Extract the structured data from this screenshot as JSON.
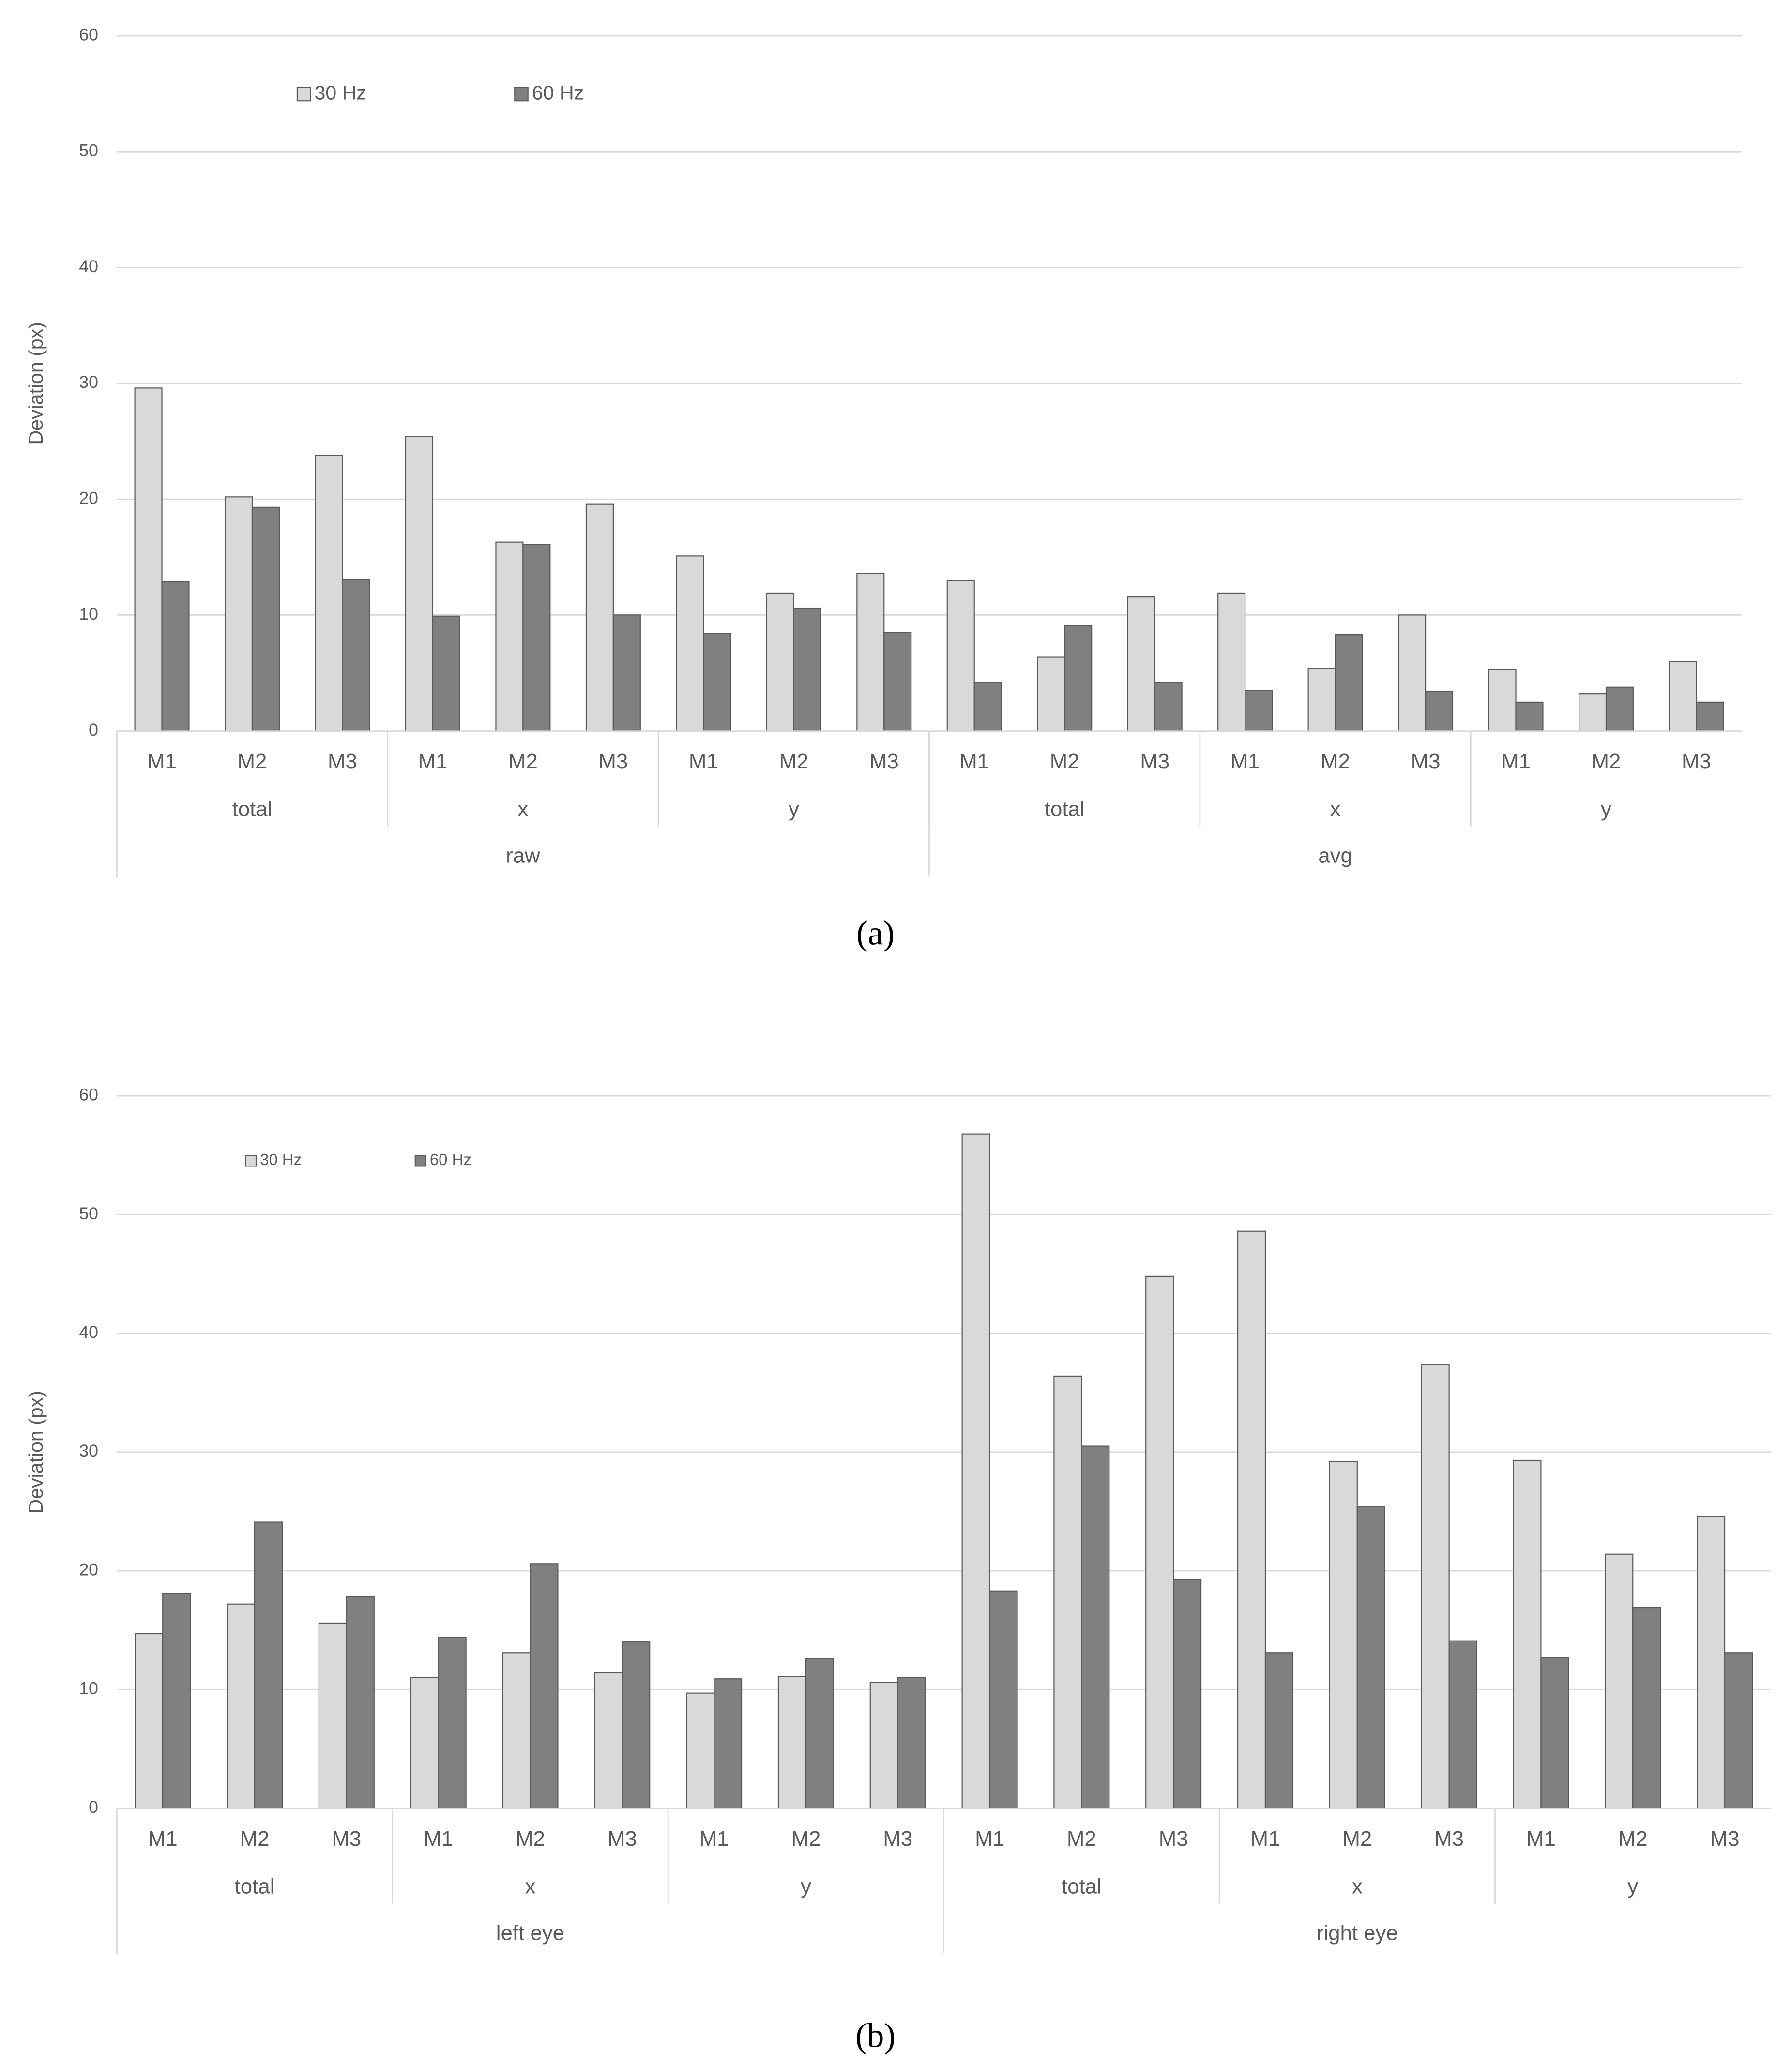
{
  "chart_data": [
    {
      "type": "bar",
      "y_label": "Deviation (px)",
      "caption": "(a)",
      "categories": [
        "M1",
        "M2",
        "M3",
        "M1",
        "M2",
        "M3",
        "M1",
        "M2",
        "M3",
        "M1",
        "M2",
        "M3",
        "M1",
        "M2",
        "M3",
        "M1",
        "M2",
        "M3"
      ],
      "category_levels": [
        [
          "total",
          "x",
          "y",
          "total",
          "x",
          "y"
        ],
        [
          "raw",
          "avg"
        ]
      ],
      "series": [
        {
          "name": "30 Hz",
          "color": "#d9d9d9",
          "values": [
            29.6,
            20.2,
            23.8,
            25.4,
            16.3,
            19.6,
            15.1,
            11.9,
            13.6,
            13.0,
            6.4,
            11.6,
            11.9,
            5.4,
            10.0,
            5.3,
            3.2,
            6.0
          ]
        },
        {
          "name": "60 Hz",
          "color": "#808080",
          "values": [
            12.9,
            19.3,
            13.1,
            9.9,
            16.1,
            10.0,
            8.4,
            10.6,
            8.5,
            4.2,
            9.1,
            4.2,
            3.5,
            8.3,
            3.4,
            2.5,
            3.8,
            2.5
          ]
        }
      ],
      "ylim": [
        0,
        60
      ],
      "yticks": [
        0,
        10,
        20,
        30,
        40,
        50,
        60
      ],
      "grid": true,
      "legend": "top-left"
    },
    {
      "type": "bar",
      "y_label": "Deviation (px)",
      "caption": "(b)",
      "categories": [
        "M1",
        "M2",
        "M3",
        "M1",
        "M2",
        "M3",
        "M1",
        "M2",
        "M3",
        "M1",
        "M2",
        "M3",
        "M1",
        "M2",
        "M3",
        "M1",
        "M2",
        "M3"
      ],
      "category_levels": [
        [
          "total",
          "x",
          "y",
          "total",
          "x",
          "y"
        ],
        [
          "left eye",
          "right eye"
        ]
      ],
      "series": [
        {
          "name": "30 Hz",
          "color": "#d9d9d9",
          "values": [
            14.7,
            17.2,
            15.6,
            11.0,
            13.1,
            11.4,
            9.7,
            11.1,
            10.6,
            56.8,
            36.4,
            44.8,
            48.6,
            29.2,
            37.4,
            29.3,
            21.4,
            24.6
          ]
        },
        {
          "name": "60 Hz",
          "color": "#808080",
          "values": [
            18.1,
            24.1,
            17.8,
            14.4,
            20.6,
            14.0,
            10.9,
            12.6,
            11.0,
            18.3,
            30.5,
            19.3,
            13.1,
            25.4,
            14.1,
            12.7,
            16.9,
            13.1
          ]
        }
      ],
      "ylim": [
        0,
        60
      ],
      "yticks": [
        0,
        10,
        20,
        30,
        40,
        50,
        60
      ],
      "grid": true,
      "legend": "top-left"
    }
  ]
}
